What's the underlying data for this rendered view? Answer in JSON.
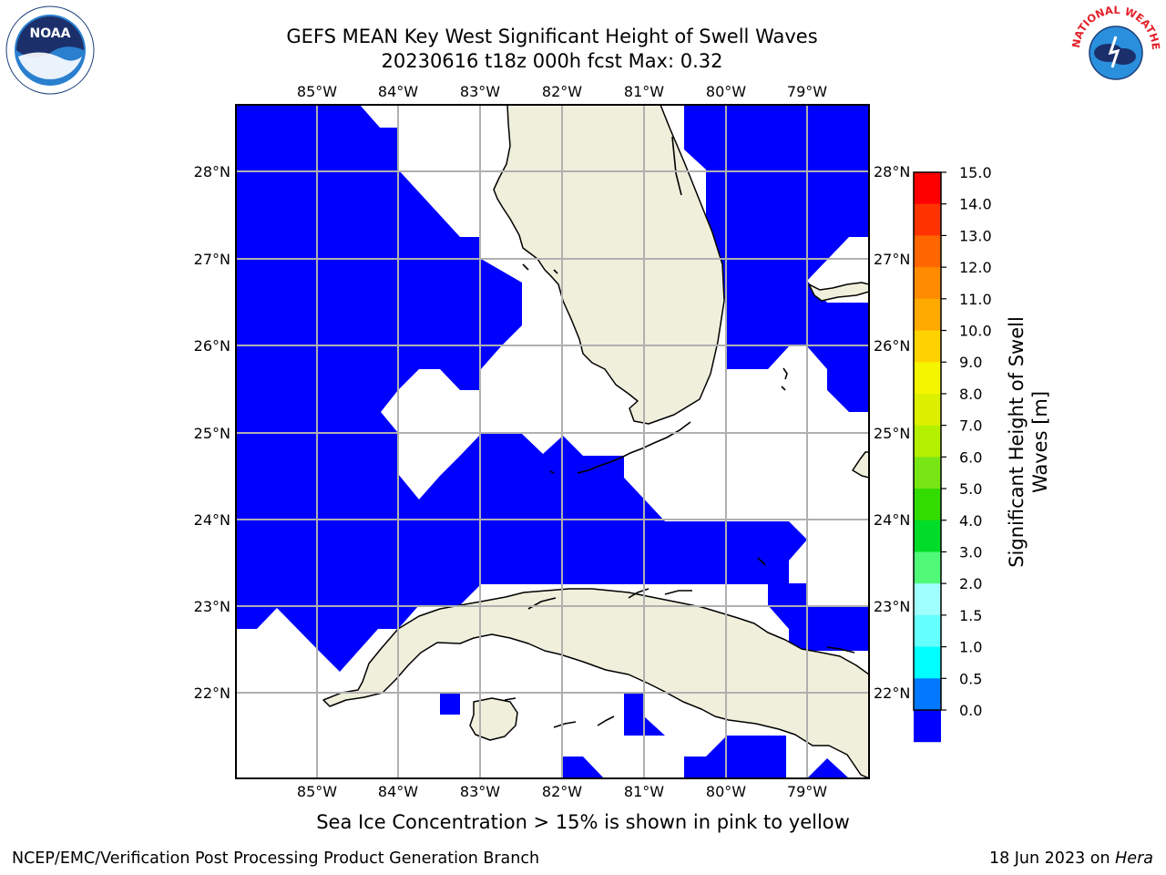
{
  "title": {
    "line1": "GEFS MEAN Key West Significant Height of Swell Waves",
    "line2": "20230616 t18z 000h fcst   Max: 0.32"
  },
  "logos": {
    "left": {
      "text": "NOAA",
      "icon": "noaa-logo-icon",
      "color": "#1a6fbf"
    },
    "right": {
      "text": "NATIONAL WEATHER SERVICE",
      "icon": "nws-logo-icon",
      "color": "#e4202a"
    }
  },
  "map": {
    "lon_labels": [
      "85°W",
      "84°W",
      "83°W",
      "82°W",
      "81°W",
      "80°W",
      "79°W"
    ],
    "lat_labels": [
      "28°N",
      "27°N",
      "26°N",
      "25°N",
      "24°N",
      "23°N",
      "22°N"
    ],
    "colors": {
      "land": "#efefdc",
      "swell": "#0000ff",
      "grid": "#b0b0b0",
      "coast": "#000000"
    }
  },
  "colorbar": {
    "label": "Significant Height of Swell Waves [m]",
    "label_line1": "Significant Height of Swell",
    "label_line2": "Waves [m]",
    "ticks": [
      "15.0",
      "14.0",
      "13.0",
      "12.0",
      "11.0",
      "10.0",
      "9.0",
      "8.0",
      "7.0",
      "6.0",
      "5.0",
      "4.0",
      "3.0",
      "2.0",
      "1.5",
      "1.0",
      "0.5",
      "0.0"
    ],
    "colors": [
      "#ff0000",
      "#ff3300",
      "#ff6600",
      "#ff8c00",
      "#ffaa00",
      "#ffd200",
      "#f5f500",
      "#dcf000",
      "#b4f000",
      "#78e614",
      "#32dc00",
      "#00dc28",
      "#50fa78",
      "#a0ffff",
      "#64ffff",
      "#00ffff",
      "#0078ff",
      "#0000ff"
    ]
  },
  "caption": "Sea Ice Concentration > 15% is shown in pink to yellow",
  "footer": {
    "left": "NCEP/EMC/Verification Post Processing Product Generation Branch",
    "right_prefix": "18 Jun 2023 on ",
    "right_host": "Hera"
  }
}
